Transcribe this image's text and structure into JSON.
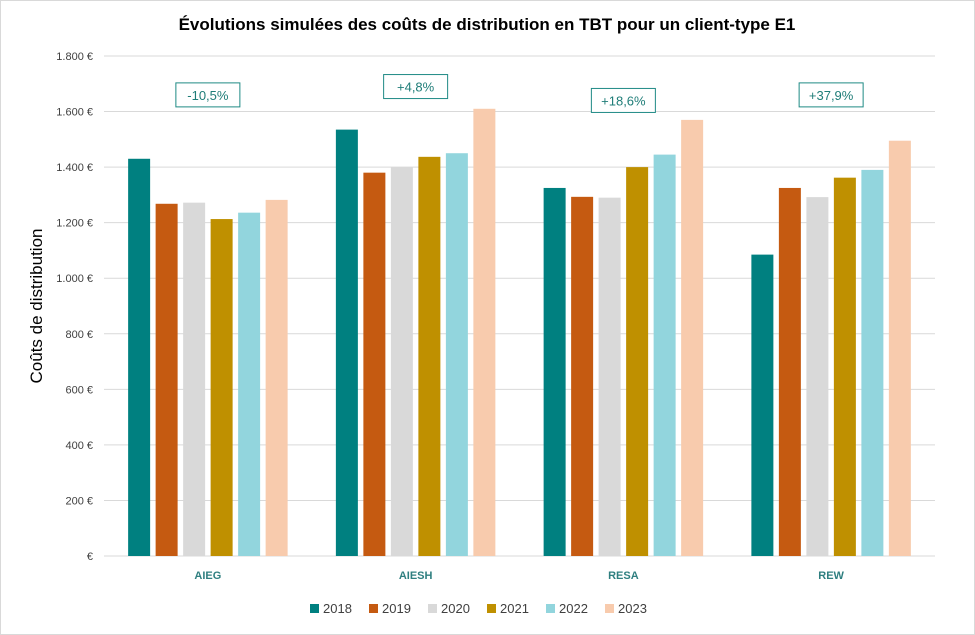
{
  "chart_data": {
    "type": "bar",
    "title": "Évolutions  simulées des coûts de distribution  en TBT pour un client-type E1",
    "xlabel": "",
    "ylabel": "Coûts de distribution",
    "ylim": [
      0,
      1800
    ],
    "yticks": [
      0,
      200,
      400,
      600,
      800,
      1000,
      1200,
      1400,
      1600,
      1800
    ],
    "ytick_labels": [
      "€",
      "200 €",
      "400 €",
      "600 €",
      "800 €",
      "1.000 €",
      "1.200 €",
      "1.400 €",
      "1.600 €",
      "1.800 €"
    ],
    "grid": true,
    "legend_position": "bottom",
    "categories": [
      "AIEG",
      "AIESH",
      "RESA",
      "REW"
    ],
    "series": [
      {
        "name": "2018",
        "color": "#008080",
        "values": [
          1430,
          1535,
          1325,
          1085
        ]
      },
      {
        "name": "2019",
        "color": "#c55a11",
        "values": [
          1268,
          1380,
          1293,
          1325
        ]
      },
      {
        "name": "2020",
        "color": "#d9d9d9",
        "values": [
          1272,
          1400,
          1290,
          1292
        ]
      },
      {
        "name": "2021",
        "color": "#bf9000",
        "values": [
          1213,
          1437,
          1400,
          1362
        ]
      },
      {
        "name": "2022",
        "color": "#92d5dd",
        "values": [
          1236,
          1450,
          1445,
          1390
        ]
      },
      {
        "name": "2023",
        "color": "#f8cbad",
        "values": [
          1282,
          1610,
          1570,
          1495
        ]
      }
    ],
    "annotations": [
      {
        "category": "AIEG",
        "text": "-10,5%",
        "y": 1660
      },
      {
        "category": "AIESH",
        "text": "+4,8%",
        "y": 1690
      },
      {
        "category": "RESA",
        "text": "+18,6%",
        "y": 1640
      },
      {
        "category": "REW",
        "text": "+37,9%",
        "y": 1660
      }
    ]
  }
}
